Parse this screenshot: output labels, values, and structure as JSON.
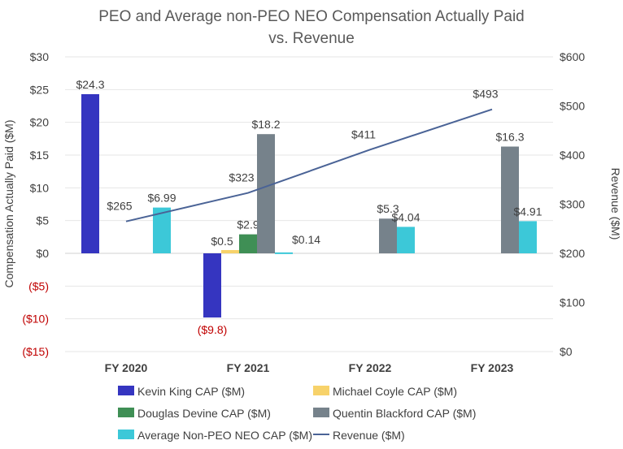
{
  "chart_data": {
    "type": "bar",
    "title": "PEO and Average non-PEO NEO Compensation Actually Paid vs. Revenue",
    "title_lines": [
      "PEO and Average non-PEO NEO Compensation Actually Paid",
      "vs. Revenue"
    ],
    "ylabel": "Compensation Actually Paid ($M)",
    "y2label": "Revenue ($M)",
    "ylim": [
      -15,
      30
    ],
    "y2lim": [
      0,
      600
    ],
    "yticks": [
      "($15)",
      "($10)",
      "($5)",
      "$0",
      "$5",
      "$10",
      "$15",
      "$20",
      "$25",
      "$30"
    ],
    "y2ticks": [
      "$0",
      "$100",
      "$200",
      "$300",
      "$400",
      "$500",
      "$600"
    ],
    "grid": true,
    "legend_placement": "bottom",
    "categories": [
      "FY 2020",
      "FY 2021",
      "FY 2022",
      "FY 2023"
    ],
    "series": [
      {
        "name": "Kevin King CAP ($M)",
        "color": "#3535c0",
        "values": [
          24.3,
          -9.8,
          null,
          null
        ],
        "labels": [
          "$24.3",
          "($9.8)",
          null,
          null
        ]
      },
      {
        "name": "Michael Coyle CAP ($M)",
        "color": "#f7d26a",
        "values": [
          null,
          0.5,
          null,
          null
        ],
        "labels": [
          null,
          "$0.5",
          null,
          null
        ]
      },
      {
        "name": "Douglas Devine CAP ($M)",
        "color": "#3f8f55",
        "values": [
          null,
          2.9,
          null,
          null
        ],
        "labels": [
          null,
          "$2.9",
          null,
          null
        ]
      },
      {
        "name": "Quentin Blackford CAP ($M)",
        "color": "#76828b",
        "values": [
          null,
          18.2,
          5.3,
          16.3
        ],
        "labels": [
          null,
          "$18.2",
          "$5.3",
          "$16.3"
        ]
      },
      {
        "name": "Average Non-PEO NEO CAP ($M)",
        "color": "#3cc8d8",
        "values": [
          6.99,
          0.14,
          4.04,
          4.91
        ],
        "labels": [
          "$6.99",
          "$0.14",
          "$4.04",
          "$4.91"
        ]
      }
    ],
    "line_series": {
      "name": "Revenue ($M)",
      "color": "#4a6396",
      "axis": "right",
      "values": [
        265,
        323,
        411,
        493
      ],
      "labels": [
        "$265",
        "$323",
        "$411",
        "$493"
      ]
    },
    "negative_label_color": "#c00000"
  }
}
